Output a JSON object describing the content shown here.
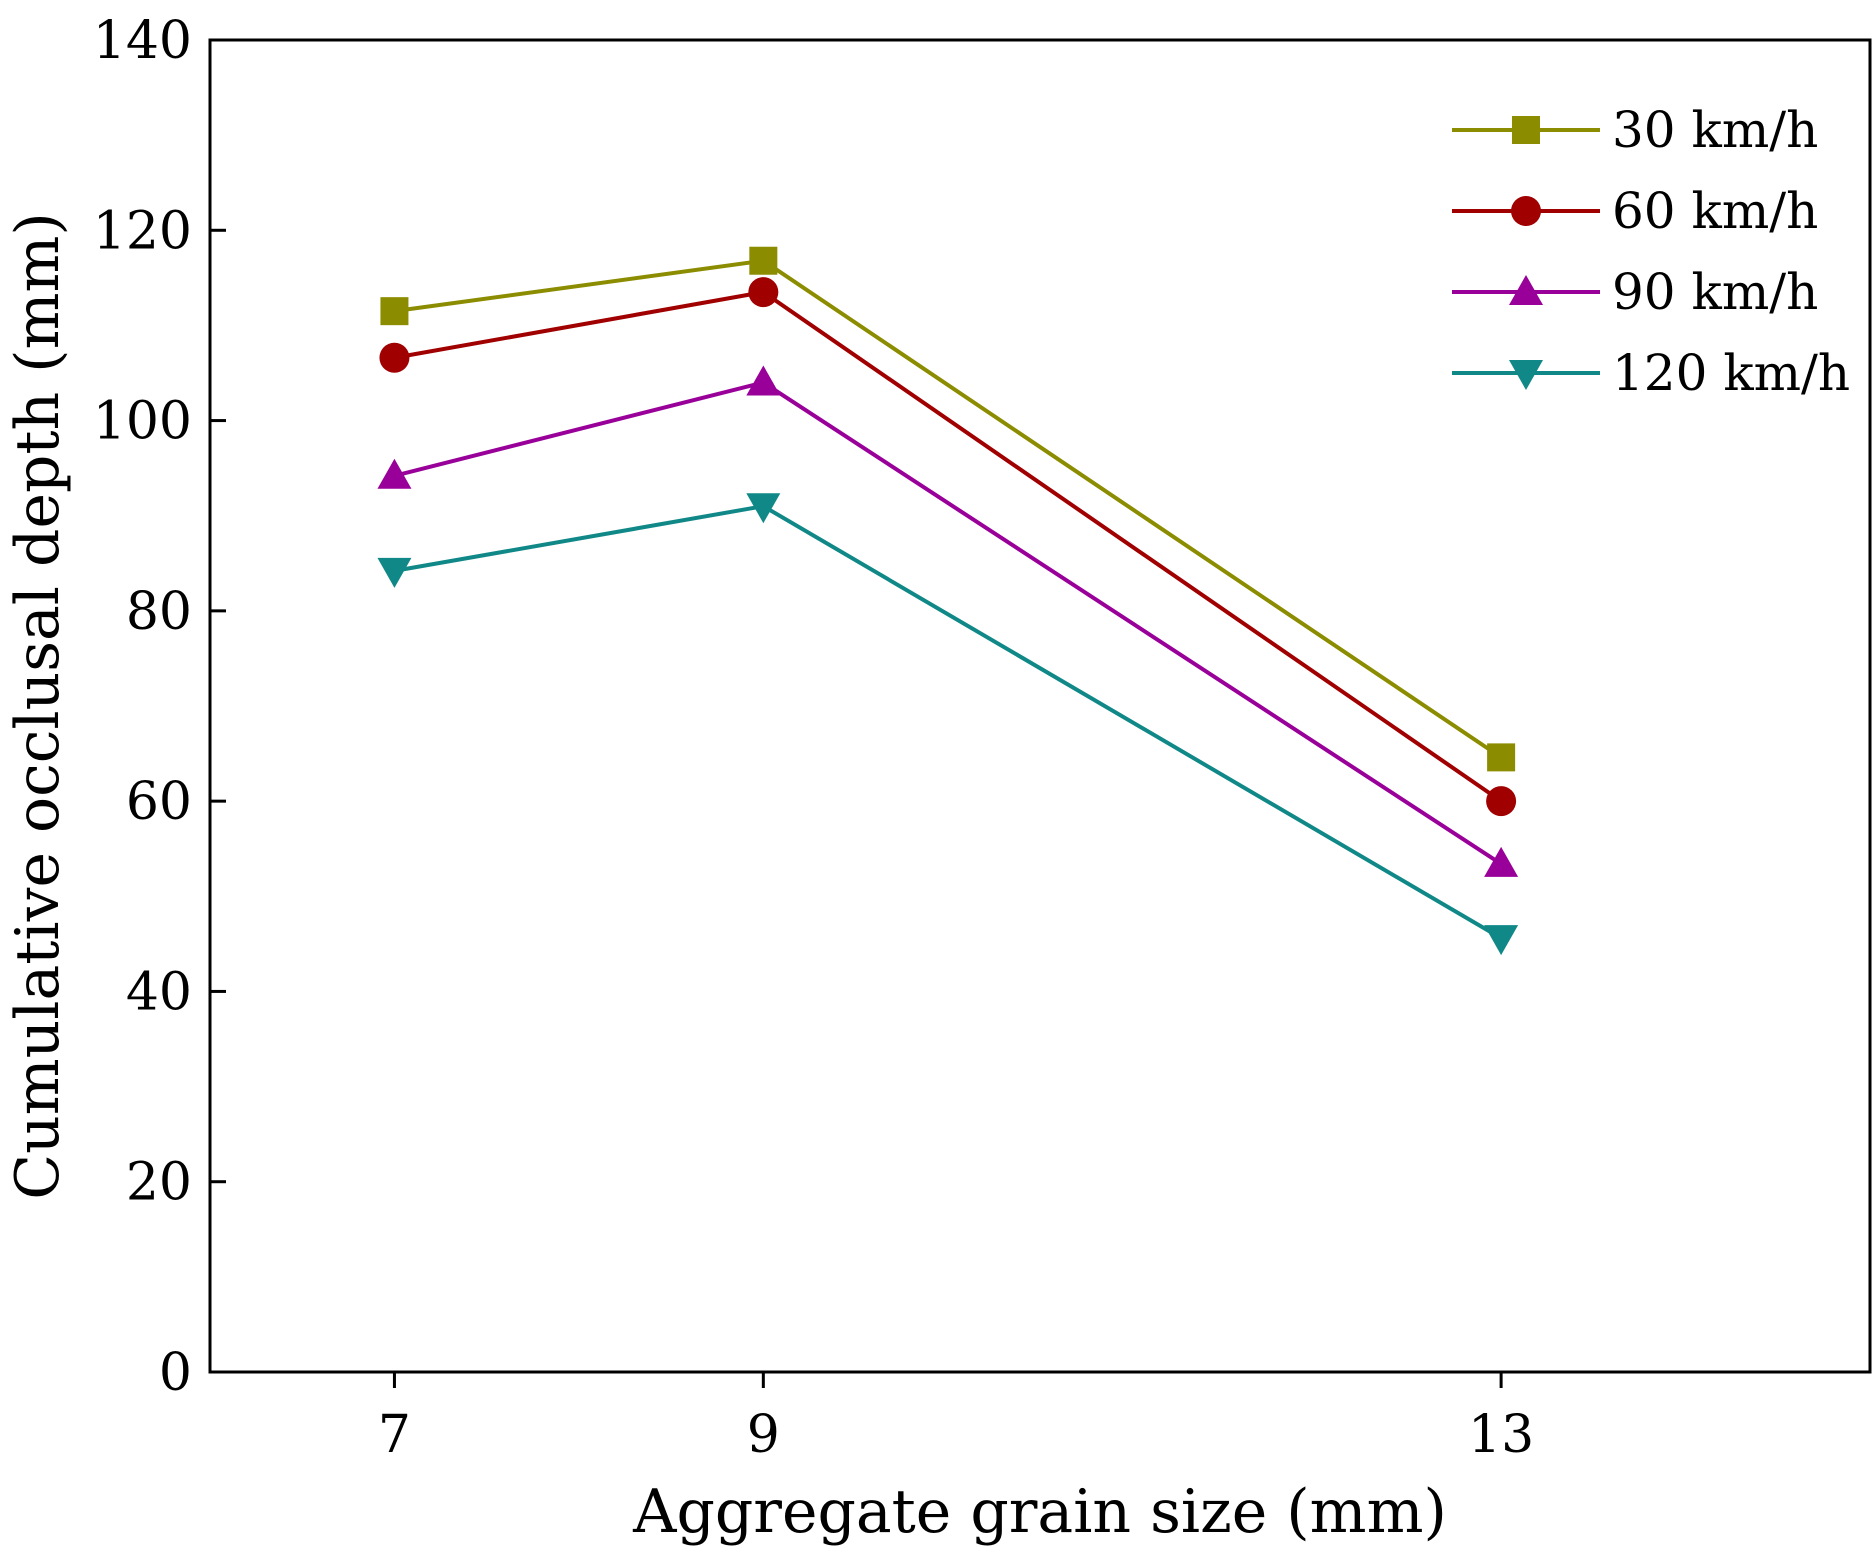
{
  "chart_data": {
    "type": "line",
    "title": "",
    "xlabel": "Aggregate grain size (mm)",
    "ylabel": "Cumulative occlusal depth (mm)",
    "x": [
      7,
      9,
      13
    ],
    "x_tick_labels": [
      "7",
      "9",
      "13"
    ],
    "xlim": [
      6,
      15
    ],
    "ylim": [
      0,
      140
    ],
    "y_ticks": [
      0,
      20,
      40,
      60,
      80,
      100,
      120,
      140
    ],
    "grid": false,
    "legend_position": "top-right",
    "series": [
      {
        "name": "30 km/h",
        "values": [
          111.5,
          116.8,
          64.6
        ],
        "color": "#8c8c00",
        "marker": "square"
      },
      {
        "name": "60 km/h",
        "values": [
          106.6,
          113.5,
          60.0
        ],
        "color": "#a00000",
        "marker": "circle"
      },
      {
        "name": "90 km/h",
        "values": [
          94.2,
          104.0,
          53.4
        ],
        "color": "#990099",
        "marker": "triangle-up"
      },
      {
        "name": "120 km/h",
        "values": [
          84.2,
          91.0,
          45.6
        ],
        "color": "#118888",
        "marker": "triangle-down"
      }
    ]
  }
}
